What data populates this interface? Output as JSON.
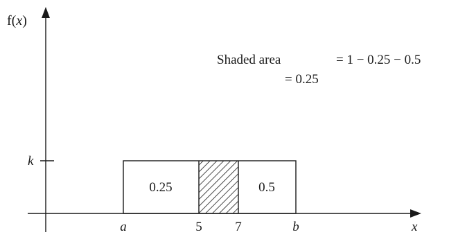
{
  "axes": {
    "y_label_prefix": "f(",
    "y_label_var": "x",
    "y_label_suffix": ")",
    "x_label": "x",
    "k_label": "k"
  },
  "ticks": {
    "a": "a",
    "five": "5",
    "seven": "7",
    "b": "b"
  },
  "regions": {
    "left_area": "0.25",
    "right_area": "0.5"
  },
  "annotation": {
    "shaded_area_label": "Shaded area",
    "equation_line1": "= 1 − 0.25 − 0.5",
    "equation_line2": "= 0.25"
  },
  "colors": {
    "ink": "#1a1a1a",
    "background": "#ffffff"
  }
}
